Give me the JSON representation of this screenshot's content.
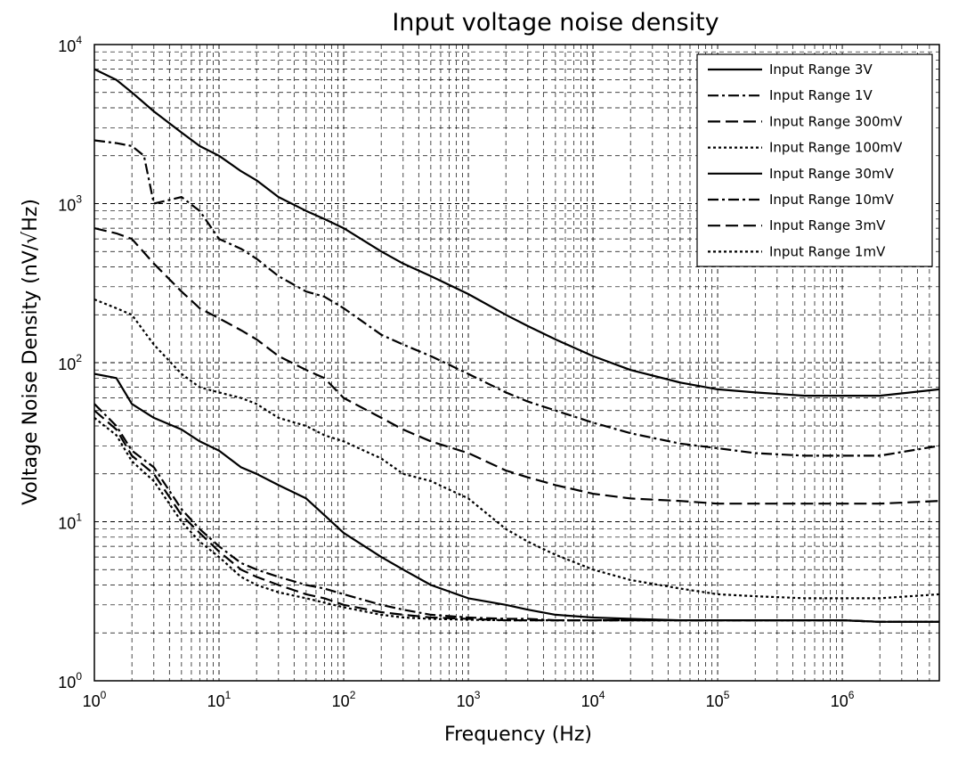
{
  "chart_data": {
    "type": "line",
    "title": "Input voltage noise density",
    "xlabel": "Frequency (Hz)",
    "ylabel": "Voltage Noise Density (nV/√Hz)",
    "x_scale": "log",
    "y_scale": "log",
    "xlim": [
      1,
      6000000
    ],
    "ylim": [
      1,
      10000
    ],
    "grid": true,
    "legend_position": "top-right",
    "x_ticks": [
      {
        "base": "10",
        "exp": "0",
        "value": 1
      },
      {
        "base": "10",
        "exp": "1",
        "value": 10
      },
      {
        "base": "10",
        "exp": "2",
        "value": 100
      },
      {
        "base": "10",
        "exp": "3",
        "value": 1000
      },
      {
        "base": "10",
        "exp": "4",
        "value": 10000
      },
      {
        "base": "10",
        "exp": "5",
        "value": 100000
      },
      {
        "base": "10",
        "exp": "6",
        "value": 1000000
      }
    ],
    "y_ticks": [
      {
        "base": "10",
        "exp": "0",
        "value": 1
      },
      {
        "base": "10",
        "exp": "1",
        "value": 10
      },
      {
        "base": "10",
        "exp": "2",
        "value": 100
      },
      {
        "base": "10",
        "exp": "3",
        "value": 1000
      },
      {
        "base": "10",
        "exp": "4",
        "value": 10000
      }
    ],
    "series": [
      {
        "name": "Input Range 3V",
        "style": "solid",
        "x": [
          1,
          1.5,
          2,
          3,
          5,
          7,
          10,
          15,
          20,
          30,
          50,
          70,
          100,
          200,
          300,
          500,
          1000,
          2000,
          3000,
          5000,
          10000,
          20000,
          50000,
          100000,
          200000,
          500000,
          1000000,
          2000000,
          6000000
        ],
        "y": [
          7000,
          6000,
          5000,
          3800,
          2800,
          2300,
          2000,
          1600,
          1400,
          1100,
          900,
          800,
          700,
          500,
          420,
          350,
          270,
          200,
          170,
          140,
          110,
          90,
          75,
          68,
          65,
          62,
          62,
          62,
          68
        ]
      },
      {
        "name": "Input Range 1V",
        "style": "dashdot",
        "x": [
          1,
          1.5,
          2,
          2.5,
          3,
          5,
          7,
          10,
          15,
          20,
          30,
          50,
          70,
          100,
          200,
          300,
          500,
          1000,
          2000,
          3000,
          5000,
          10000,
          20000,
          50000,
          100000,
          200000,
          500000,
          1000000,
          2000000,
          6000000
        ],
        "y": [
          2500,
          2400,
          2300,
          2000,
          1000,
          1100,
          900,
          600,
          520,
          450,
          350,
          280,
          260,
          220,
          150,
          130,
          110,
          85,
          65,
          57,
          50,
          42,
          36,
          31,
          29,
          27,
          26,
          26,
          26,
          30
        ]
      },
      {
        "name": "Input Range 300mV",
        "style": "dashed",
        "x": [
          1,
          1.5,
          2,
          3,
          5,
          7,
          10,
          15,
          20,
          30,
          50,
          70,
          100,
          200,
          300,
          500,
          1000,
          2000,
          3000,
          5000,
          10000,
          20000,
          50000,
          100000,
          200000,
          500000,
          1000000,
          2000000,
          6000000
        ],
        "y": [
          700,
          650,
          600,
          420,
          280,
          220,
          190,
          160,
          140,
          110,
          90,
          80,
          60,
          45,
          38,
          32,
          27,
          21,
          19,
          17,
          15,
          14,
          13.5,
          13,
          13,
          13,
          13,
          13,
          13.5
        ]
      },
      {
        "name": "Input Range 100mV",
        "style": "dotted",
        "x": [
          1,
          1.5,
          2,
          3,
          5,
          7,
          10,
          15,
          20,
          30,
          50,
          70,
          100,
          200,
          300,
          500,
          1000,
          2000,
          3000,
          5000,
          10000,
          20000,
          50000,
          100000,
          200000,
          500000,
          1000000,
          2000000,
          6000000
        ],
        "y": [
          250,
          220,
          200,
          130,
          85,
          70,
          65,
          60,
          55,
          45,
          40,
          35,
          32,
          25,
          20,
          18,
          14,
          9,
          7.5,
          6.2,
          5,
          4.3,
          3.8,
          3.5,
          3.4,
          3.3,
          3.3,
          3.3,
          3.5
        ]
      },
      {
        "name": "Input Range 30mV",
        "style": "solid",
        "x": [
          1,
          1.5,
          2,
          3,
          5,
          7,
          10,
          15,
          20,
          30,
          50,
          70,
          100,
          200,
          300,
          500,
          1000,
          2000,
          3000,
          5000,
          10000,
          20000,
          50000,
          100000,
          200000,
          500000,
          1000000,
          2000000,
          6000000
        ],
        "y": [
          85,
          80,
          55,
          45,
          38,
          32,
          28,
          22,
          20,
          17,
          14,
          11,
          8.5,
          6,
          5,
          4,
          3.3,
          3,
          2.8,
          2.6,
          2.5,
          2.45,
          2.4,
          2.4,
          2.4,
          2.4,
          2.4,
          2.35,
          2.35
        ]
      },
      {
        "name": "Input Range 10mV",
        "style": "dashdot",
        "x": [
          1,
          1.5,
          2,
          3,
          5,
          7,
          10,
          15,
          20,
          30,
          50,
          70,
          100,
          200,
          300,
          500,
          1000,
          2000,
          3000,
          5000,
          10000,
          20000,
          50000,
          100000,
          200000,
          500000,
          1000000,
          2000000,
          6000000
        ],
        "y": [
          55,
          40,
          28,
          22,
          12,
          9,
          7,
          5.5,
          5,
          4.5,
          4,
          3.8,
          3.5,
          3,
          2.8,
          2.6,
          2.5,
          2.45,
          2.45,
          2.4,
          2.4,
          2.4,
          2.4,
          2.4,
          2.4,
          2.4,
          2.4,
          2.35,
          2.35
        ]
      },
      {
        "name": "Input Range 3mV",
        "style": "dashed",
        "x": [
          1,
          1.5,
          2,
          3,
          5,
          7,
          10,
          15,
          20,
          30,
          50,
          70,
          100,
          200,
          300,
          500,
          1000,
          2000,
          3000,
          5000,
          10000,
          20000,
          50000,
          100000,
          200000,
          500000,
          1000000,
          2000000,
          6000000
        ],
        "y": [
          50,
          38,
          26,
          20,
          11,
          8.5,
          6.5,
          5,
          4.5,
          4,
          3.5,
          3.3,
          3,
          2.7,
          2.6,
          2.5,
          2.45,
          2.4,
          2.4,
          2.4,
          2.4,
          2.4,
          2.4,
          2.4,
          2.4,
          2.4,
          2.4,
          2.35,
          2.35
        ]
      },
      {
        "name": "Input Range 1mV",
        "style": "dotted",
        "x": [
          1,
          1.5,
          2,
          3,
          5,
          7,
          10,
          15,
          20,
          30,
          50,
          70,
          100,
          200,
          300,
          500,
          1000,
          2000,
          3000,
          5000,
          10000,
          20000,
          50000,
          100000,
          200000,
          500000,
          1000000,
          2000000,
          6000000
        ],
        "y": [
          45,
          35,
          24,
          18,
          10,
          7.5,
          6,
          4.5,
          4,
          3.6,
          3.3,
          3.1,
          2.9,
          2.6,
          2.5,
          2.45,
          2.42,
          2.4,
          2.4,
          2.4,
          2.4,
          2.4,
          2.4,
          2.4,
          2.4,
          2.4,
          2.4,
          2.35,
          2.35
        ]
      }
    ]
  }
}
